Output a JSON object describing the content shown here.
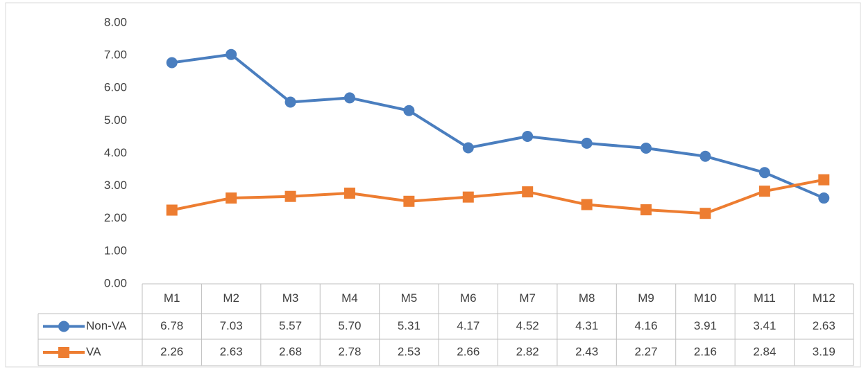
{
  "chart_data": {
    "type": "line",
    "categories": [
      "M1",
      "M2",
      "M3",
      "M4",
      "M5",
      "M6",
      "M7",
      "M8",
      "M9",
      "M10",
      "M11",
      "M12"
    ],
    "series": [
      {
        "name": "Non-VA",
        "color": "#4a7ebf",
        "marker": "circle",
        "values": [
          6.78,
          7.03,
          5.57,
          5.7,
          5.31,
          4.17,
          4.52,
          4.31,
          4.16,
          3.91,
          3.41,
          2.63
        ],
        "value_labels": [
          "6.78",
          "7.03",
          "5.57",
          "5.70",
          "5.31",
          "4.17",
          "4.52",
          "4.31",
          "4.16",
          "3.91",
          "3.41",
          "2.63"
        ]
      },
      {
        "name": "VA",
        "color": "#ed7d31",
        "marker": "square",
        "values": [
          2.26,
          2.63,
          2.68,
          2.78,
          2.53,
          2.66,
          2.82,
          2.43,
          2.27,
          2.16,
          2.84,
          3.19
        ],
        "value_labels": [
          "2.26",
          "2.63",
          "2.68",
          "2.78",
          "2.53",
          "2.66",
          "2.82",
          "2.43",
          "2.27",
          "2.16",
          "2.84",
          "3.19"
        ]
      }
    ],
    "ylim": [
      0,
      8
    ],
    "yticks": [
      {
        "value": 0,
        "label": "0.00"
      },
      {
        "value": 1,
        "label": "1.00"
      },
      {
        "value": 2,
        "label": "2.00"
      },
      {
        "value": 3,
        "label": "3.00"
      },
      {
        "value": 4,
        "label": "4.00"
      },
      {
        "value": 5,
        "label": "5.00"
      },
      {
        "value": 6,
        "label": "6.00"
      },
      {
        "value": 7,
        "label": "7.00"
      },
      {
        "value": 8,
        "label": "8.00"
      }
    ],
    "grid": false,
    "data_table": true
  }
}
